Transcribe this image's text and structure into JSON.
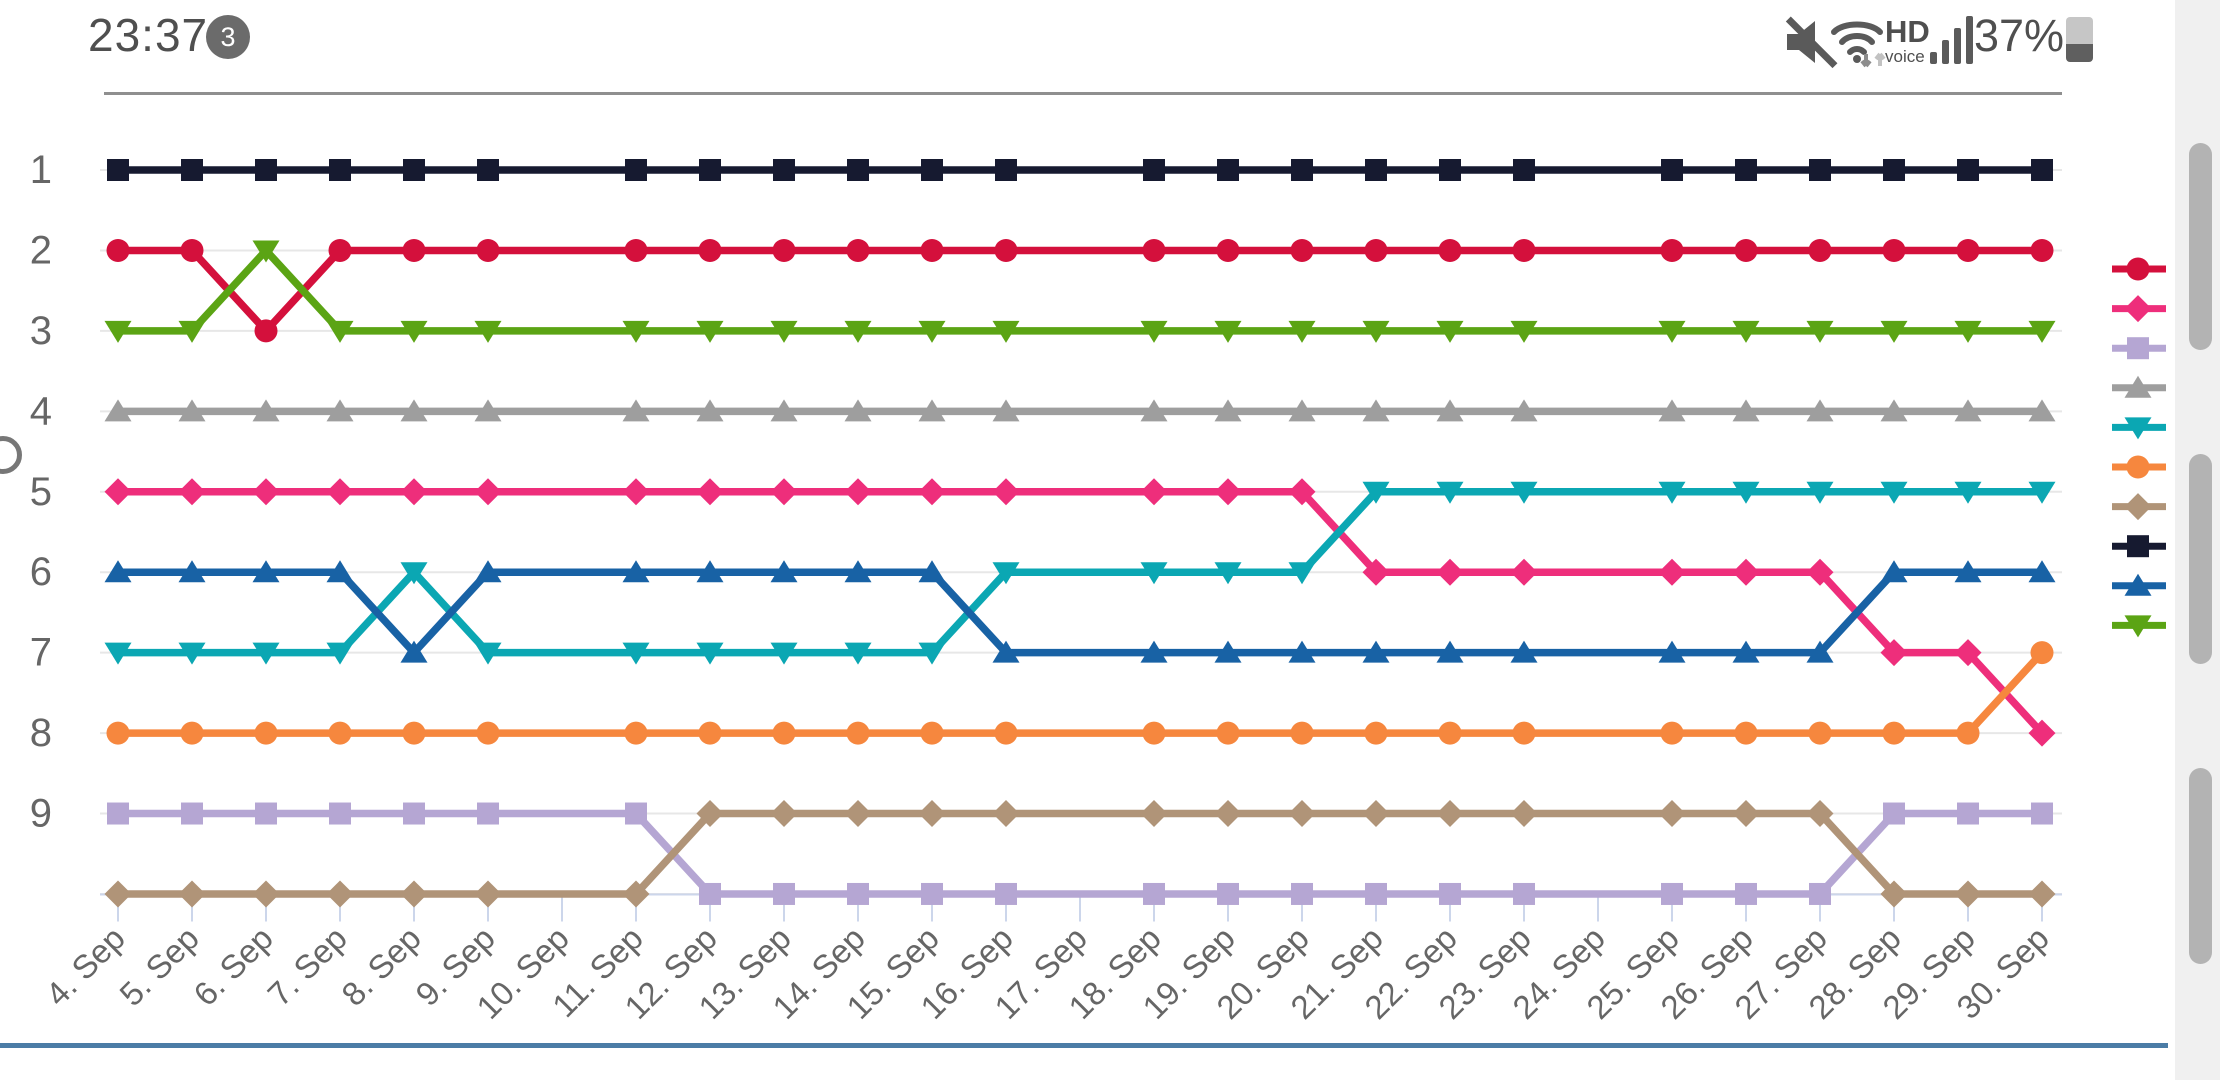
{
  "status_bar": {
    "clock": "23:37",
    "notification_badge": "3",
    "hd_label": "HD",
    "voice_label": "voice",
    "battery_percent": "37%",
    "icons": [
      "muted-speaker-icon",
      "wifi-icon",
      "hd-voice-indicator",
      "signal-strength-icon",
      "battery-icon"
    ]
  },
  "colors": {
    "status_gray": "#4f4f4f",
    "axis": "#ccd6eb",
    "grid": "#e7e7e7",
    "label": "#666666",
    "top_rule": "#8f8f8f",
    "bottom_rule": "#4b7ca6",
    "scroll_track": "#f0f0f0",
    "scroll_thumb": "#b3b3b3"
  },
  "chart_data": {
    "type": "line",
    "title": "",
    "xlabel": "",
    "ylabel": "",
    "x_labels": [
      "4. Sep",
      "5. Sep",
      "6. Sep",
      "7. Sep",
      "8. Sep",
      "9. Sep",
      "10. Sep",
      "11. Sep",
      "12. Sep",
      "13. Sep",
      "14. Sep",
      "15. Sep",
      "16. Sep",
      "17. Sep",
      "18. Sep",
      "19. Sep",
      "20. Sep",
      "21. Sep",
      "22. Sep",
      "23. Sep",
      "24. Sep",
      "25. Sep",
      "26. Sep",
      "27. Sep",
      "28. Sep",
      "29. Sep",
      "30. Sep"
    ],
    "y_tick_labels": [
      "1",
      "2",
      "3",
      "4",
      "5",
      "6",
      "7",
      "8",
      "9"
    ],
    "ylim": [
      1,
      10
    ],
    "y_inverted": true,
    "grid": "horizontal-only",
    "legend_position": "right",
    "no_marker_indices": [
      6,
      13,
      20
    ],
    "series": [
      {
        "id": "red-circle",
        "marker": "circle",
        "color": "#d4103c",
        "values": [
          2,
          2,
          3,
          2,
          2,
          2,
          2,
          2,
          2,
          2,
          2,
          2,
          2,
          2,
          2,
          2,
          2,
          2,
          2,
          2,
          2,
          2,
          2,
          2,
          2,
          2,
          2
        ]
      },
      {
        "id": "pink-diamond",
        "marker": "diamond",
        "color": "#ee2e7b",
        "values": [
          5,
          5,
          5,
          5,
          5,
          5,
          5,
          5,
          5,
          5,
          5,
          5,
          5,
          5,
          5,
          5,
          5,
          6,
          6,
          6,
          6,
          6,
          6,
          6,
          7,
          7,
          8
        ]
      },
      {
        "id": "purple-square",
        "marker": "square",
        "color": "#b5a6d3",
        "values": [
          9,
          9,
          9,
          9,
          9,
          9,
          9,
          9,
          10,
          10,
          10,
          10,
          10,
          10,
          10,
          10,
          10,
          10,
          10,
          10,
          10,
          10,
          10,
          10,
          9,
          9,
          9
        ]
      },
      {
        "id": "gray-triangle-up",
        "marker": "triangle-up",
        "color": "#9e9e9e",
        "values": [
          4,
          4,
          4,
          4,
          4,
          4,
          4,
          4,
          4,
          4,
          4,
          4,
          4,
          4,
          4,
          4,
          4,
          4,
          4,
          4,
          4,
          4,
          4,
          4,
          4,
          4,
          4
        ]
      },
      {
        "id": "teal-triangle-down",
        "marker": "triangle-down",
        "color": "#0ba7b3",
        "values": [
          7,
          7,
          7,
          7,
          6,
          7,
          7,
          7,
          7,
          7,
          7,
          7,
          6,
          6,
          6,
          6,
          6,
          5,
          5,
          5,
          5,
          5,
          5,
          5,
          5,
          5,
          5
        ]
      },
      {
        "id": "orange-circle",
        "marker": "circle",
        "color": "#f6873e",
        "values": [
          8,
          8,
          8,
          8,
          8,
          8,
          8,
          8,
          8,
          8,
          8,
          8,
          8,
          8,
          8,
          8,
          8,
          8,
          8,
          8,
          8,
          8,
          8,
          8,
          8,
          8,
          7
        ]
      },
      {
        "id": "brown-diamond",
        "marker": "diamond",
        "color": "#b09478",
        "values": [
          10,
          10,
          10,
          10,
          10,
          10,
          10,
          10,
          9,
          9,
          9,
          9,
          9,
          9,
          9,
          9,
          9,
          9,
          9,
          9,
          9,
          9,
          9,
          9,
          10,
          10,
          10
        ]
      },
      {
        "id": "navy-square",
        "marker": "square",
        "color": "#161a30",
        "values": [
          1,
          1,
          1,
          1,
          1,
          1,
          1,
          1,
          1,
          1,
          1,
          1,
          1,
          1,
          1,
          1,
          1,
          1,
          1,
          1,
          1,
          1,
          1,
          1,
          1,
          1,
          1
        ]
      },
      {
        "id": "blue-triangle-up",
        "marker": "triangle-up",
        "color": "#1862a5",
        "values": [
          6,
          6,
          6,
          6,
          7,
          6,
          6,
          6,
          6,
          6,
          6,
          6,
          7,
          7,
          7,
          7,
          7,
          7,
          7,
          7,
          7,
          7,
          7,
          7,
          6,
          6,
          6
        ]
      },
      {
        "id": "green-triangle-down",
        "marker": "triangle-down",
        "color": "#5ba414",
        "values": [
          3,
          3,
          2,
          3,
          3,
          3,
          3,
          3,
          3,
          3,
          3,
          3,
          3,
          3,
          3,
          3,
          3,
          3,
          3,
          3,
          3,
          3,
          3,
          3,
          3,
          3,
          3
        ]
      }
    ]
  },
  "scrollbar": {
    "thumbs": [
      [
        143,
        350
      ],
      [
        454,
        664
      ],
      [
        768,
        964
      ]
    ]
  }
}
